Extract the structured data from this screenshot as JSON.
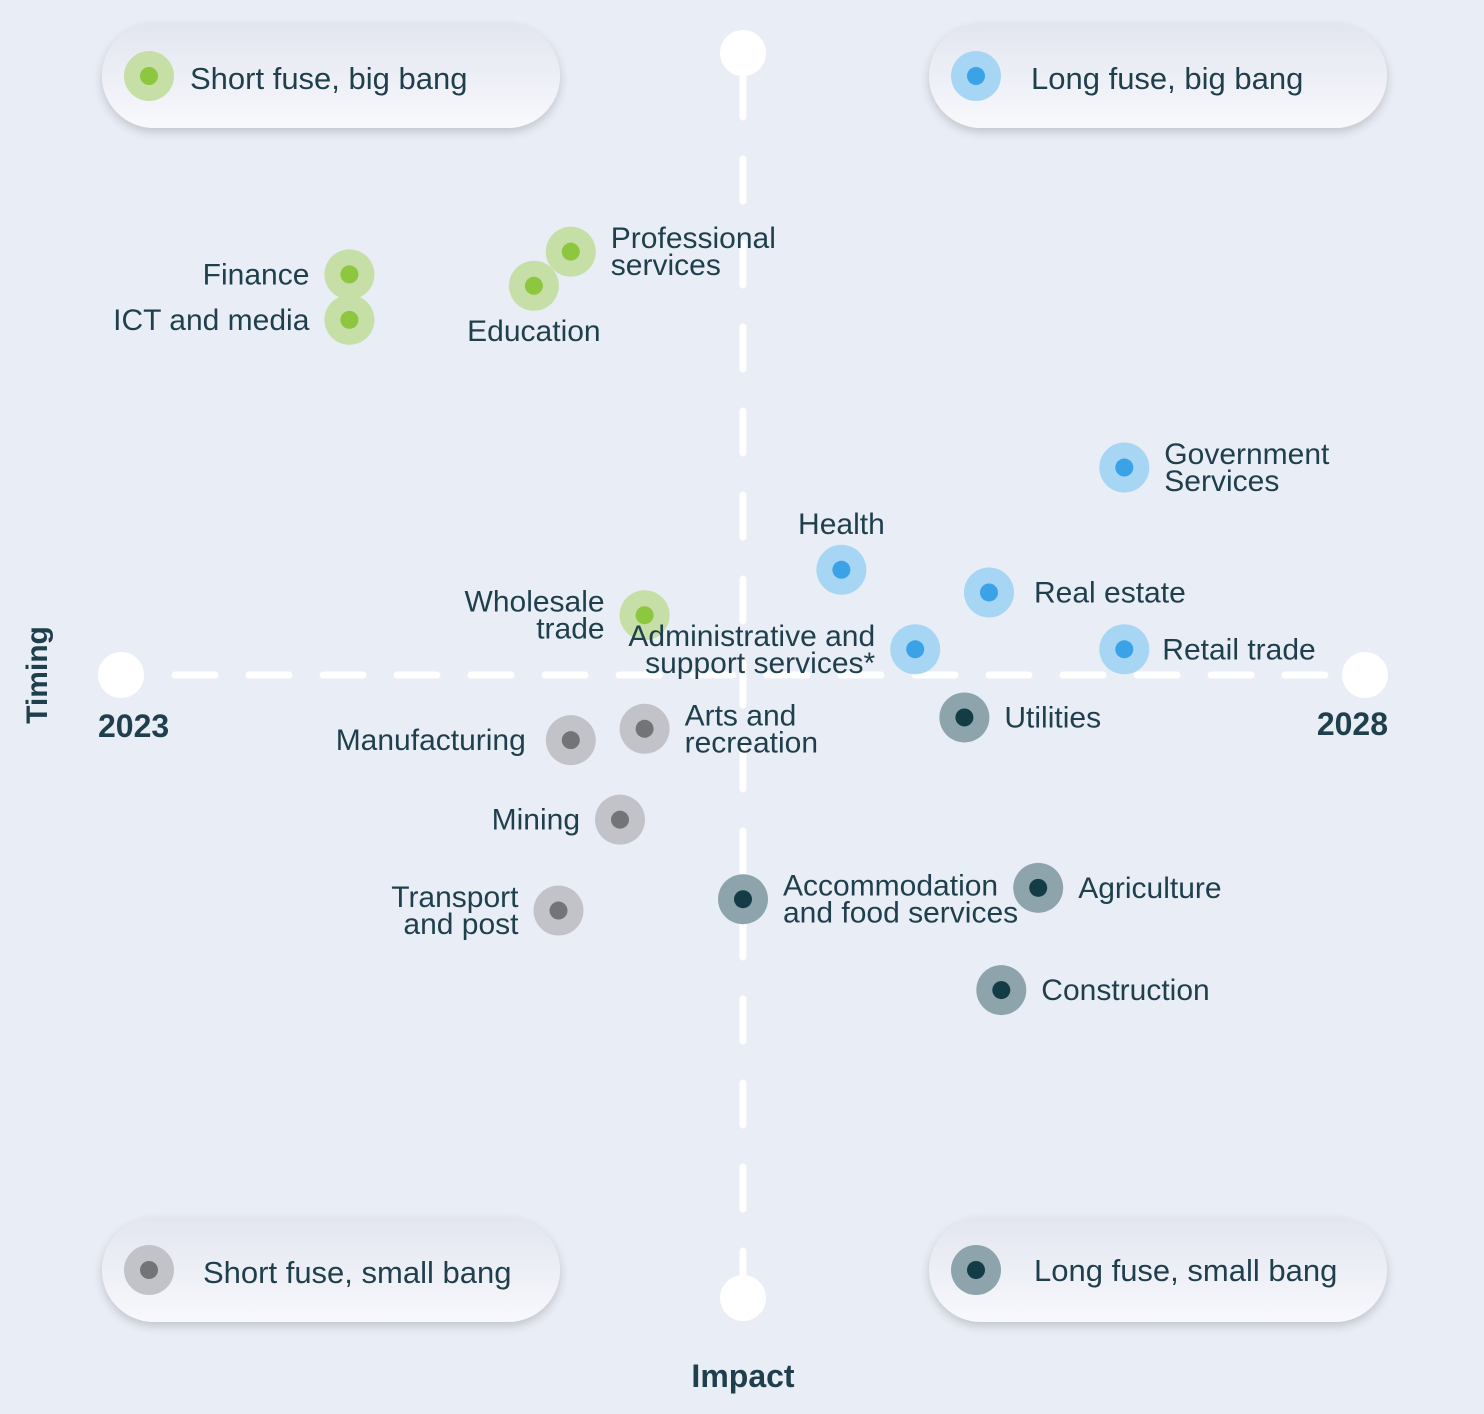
{
  "chart_data": {
    "type": "scatter",
    "xlabel": "Impact",
    "ylabel": "Timing",
    "y_axis_ticks": {
      "start": "2023",
      "end": "2028"
    },
    "grid": false,
    "quadrants": [
      {
        "id": "q-tl",
        "label": "Short fuse, big bang",
        "color": "#8dc63f",
        "halo": "#c6dfa6"
      },
      {
        "id": "q-tr",
        "label": "Long fuse, big bang",
        "color": "#3aa2e6",
        "halo": "#a6d6f4"
      },
      {
        "id": "q-bl",
        "label": "Short fuse, small bang",
        "color": "#737478",
        "halo": "#c2c3c9"
      },
      {
        "id": "q-br",
        "label": "Long fuse, small bang",
        "color": "#143c46",
        "halo": "#8ea4ad"
      }
    ],
    "points": [
      {
        "name": "Finance",
        "lines": [
          "Finance"
        ],
        "x": 0.18,
        "y": 0.85,
        "group": "q-tl"
      },
      {
        "name": "ICT and media",
        "lines": [
          "ICT and media"
        ],
        "x": 0.18,
        "y": 0.81,
        "group": "q-tl"
      },
      {
        "name": "Professional services",
        "lines": [
          "Professional",
          "services"
        ],
        "x": 0.36,
        "y": 0.87,
        "group": "q-tl"
      },
      {
        "name": "Education",
        "lines": [
          "Education"
        ],
        "x": 0.33,
        "y": 0.84,
        "group": "q-tl"
      },
      {
        "name": "Wholesale trade",
        "lines": [
          "Wholesale",
          "trade"
        ],
        "x": 0.42,
        "y": 0.55,
        "group": "q-tl"
      },
      {
        "name": "Government Services",
        "lines": [
          "Government",
          "Services"
        ],
        "x": 0.81,
        "y": 0.68,
        "group": "q-tr"
      },
      {
        "name": "Health",
        "lines": [
          "Health"
        ],
        "x": 0.58,
        "y": 0.59,
        "group": "q-tr"
      },
      {
        "name": "Real estate",
        "lines": [
          "Real estate"
        ],
        "x": 0.7,
        "y": 0.57,
        "group": "q-tr"
      },
      {
        "name": "Retail trade",
        "lines": [
          "Retail trade"
        ],
        "x": 0.81,
        "y": 0.52,
        "group": "q-tr"
      },
      {
        "name": "Administrative and support services*",
        "lines": [
          "Administrative and",
          "support services*"
        ],
        "x": 0.64,
        "y": 0.52,
        "group": "q-tr"
      },
      {
        "name": "Manufacturing",
        "lines": [
          "Manufacturing"
        ],
        "x": 0.36,
        "y": 0.44,
        "group": "q-bl"
      },
      {
        "name": "Arts and recreation",
        "lines": [
          "Arts and",
          "recreation"
        ],
        "x": 0.42,
        "y": 0.45,
        "group": "q-bl"
      },
      {
        "name": "Mining",
        "lines": [
          "Mining"
        ],
        "x": 0.4,
        "y": 0.37,
        "group": "q-bl"
      },
      {
        "name": "Transport and post",
        "lines": [
          "Transport",
          "and post"
        ],
        "x": 0.35,
        "y": 0.29,
        "group": "q-bl"
      },
      {
        "name": "Utilities",
        "lines": [
          "Utilities"
        ],
        "x": 0.68,
        "y": 0.46,
        "group": "q-br"
      },
      {
        "name": "Accommodation and food services",
        "lines": [
          "Accommodation",
          "and food services"
        ],
        "x": 0.5,
        "y": 0.3,
        "group": "q-br"
      },
      {
        "name": "Agriculture",
        "lines": [
          "Agriculture"
        ],
        "x": 0.74,
        "y": 0.31,
        "group": "q-br"
      },
      {
        "name": "Construction",
        "lines": [
          "Construction"
        ],
        "x": 0.71,
        "y": 0.22,
        "group": "q-br"
      }
    ]
  }
}
